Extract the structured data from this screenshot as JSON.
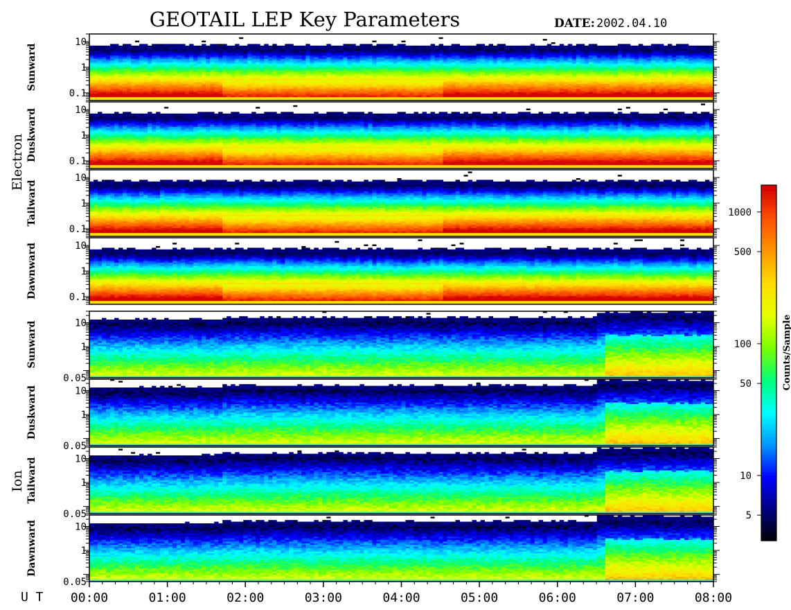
{
  "chart_data": {
    "type": "heatmap",
    "title": "GEOTAIL LEP Key Parameters",
    "date_label": "DATE:",
    "date_value": "2002.04.10",
    "x_axis": {
      "prefix": "U T",
      "range": [
        "00:00",
        "08:00"
      ],
      "tick_labels": [
        "00:00",
        "01:00",
        "02:00",
        "03:00",
        "04:00",
        "05:00",
        "06:00",
        "07:00",
        "08:00"
      ]
    },
    "colorbar": {
      "label": "Counts/Sample",
      "scale": "log",
      "range": [
        3.2,
        1600
      ],
      "tick_values": [
        5,
        10,
        50,
        100,
        500,
        1000
      ],
      "tick_labels": [
        "5",
        "10",
        "50",
        "100",
        "500",
        "1000"
      ],
      "colors": [
        "#000000",
        "#00007f",
        "#0000ff",
        "#0096ff",
        "#00ffff",
        "#00ff7a",
        "#7aff00",
        "#e6ff00",
        "#ffdc00",
        "#ff9600",
        "#ff5000",
        "#d40000"
      ]
    },
    "groups": [
      {
        "name": "Electron",
        "y_scale": "log",
        "y_range": [
          0.05,
          20
        ],
        "y_tick_labels": [
          "10",
          "1",
          "0.1"
        ],
        "y_tick_values": [
          10,
          1,
          0.1
        ],
        "panels": [
          "Sunward",
          "Duskward",
          "Tailward",
          "Dawnward"
        ]
      },
      {
        "name": "Ion",
        "y_scale": "log",
        "y_range": [
          0.05,
          30
        ],
        "y_tick_labels": [
          "10",
          "1",
          "0.05"
        ],
        "y_tick_values": [
          10,
          1,
          0.05
        ],
        "panels": [
          "Sunward",
          "Duskward",
          "Tailward",
          "Dawnward"
        ]
      }
    ]
  }
}
